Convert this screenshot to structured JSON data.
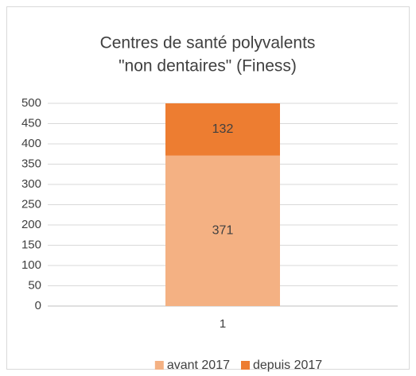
{
  "chart_data": {
    "type": "stacked_bar",
    "title": [
      "Centres de santé polyvalents",
      "\"non dentaires\" (Finess)"
    ],
    "categories": [
      "1"
    ],
    "series": [
      {
        "name": "avant 2017",
        "color": "#f4b183",
        "values": [
          371
        ]
      },
      {
        "name": "depuis 2017",
        "color": "#ed7d31",
        "values": [
          132
        ]
      }
    ],
    "ylim": [
      0,
      500
    ],
    "yticks": [
      0,
      50,
      100,
      150,
      200,
      250,
      300,
      350,
      400,
      450,
      500
    ],
    "grid": true,
    "legend": "bottom"
  }
}
